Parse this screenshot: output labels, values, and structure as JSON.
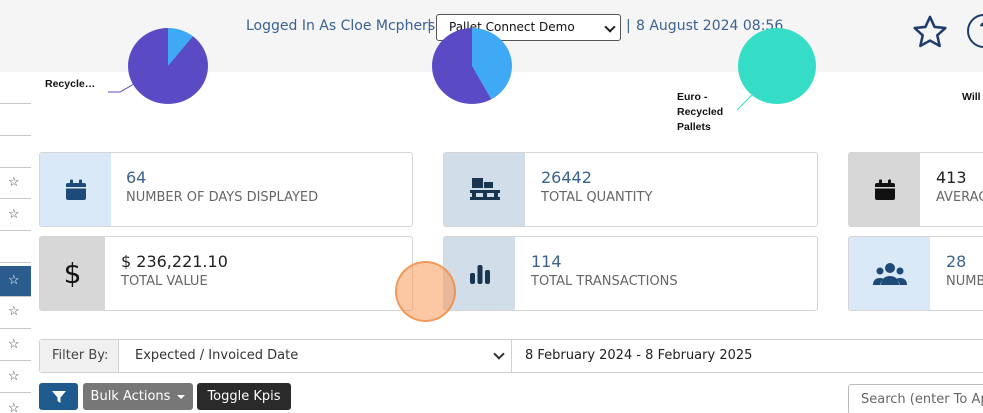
{
  "header": {
    "logged_in": "Logged In As Cloe Mcpherson",
    "sep1": "|",
    "account_select": "Pallet Connect Demo",
    "sep2": "|",
    "datetime": "8 August 2024 08:56",
    "favorite_icon": "star-outline-icon",
    "help_icon": "question-circle-icon",
    "help_glyph": "?"
  },
  "left_strip": {
    "star_glyph": "☆"
  },
  "charts": {
    "label_recycle": "Recycle…",
    "label_euro": "Euro - Recycled Pallets",
    "label_will": "Will",
    "colors": {
      "purple": "#5a4bc4",
      "blue": "#3fa9f5",
      "teal": "#35dcc6"
    }
  },
  "kpis": [
    {
      "value": "64",
      "label": "NUMBER OF DAYS DISPLAYED",
      "icon": "calendar-icon"
    },
    {
      "value": "26442",
      "label": "TOTAL QUANTITY",
      "icon": "pallet-icon"
    },
    {
      "value": "413",
      "label": "AVERAG",
      "icon": "calendar-icon"
    },
    {
      "value": "$ 236,221.10",
      "label": "TOTAL VALUE",
      "icon": "dollar-icon"
    },
    {
      "value": "114",
      "label": "TOTAL TRANSACTIONS",
      "icon": "bar-chart-icon"
    },
    {
      "value": "28",
      "label": "NUMB",
      "icon": "users-icon"
    }
  ],
  "filter": {
    "label": "Filter By:",
    "selected": "Expected / Invoiced Date",
    "date_range": "8 February 2024 - 8 February 2025"
  },
  "toolbar": {
    "filter_icon": "funnel-icon",
    "bulk_label": "Bulk Actions",
    "toggle_label": "Toggle Kpis",
    "search_placeholder": "Search (enter To Apply)"
  },
  "colors": {
    "accent": "#3b6290",
    "dark_navy": "#1f3c6a",
    "filter_btn": "#1e5a8e",
    "bulk_btn": "#777777",
    "toggle_btn": "#2a2a2a"
  }
}
